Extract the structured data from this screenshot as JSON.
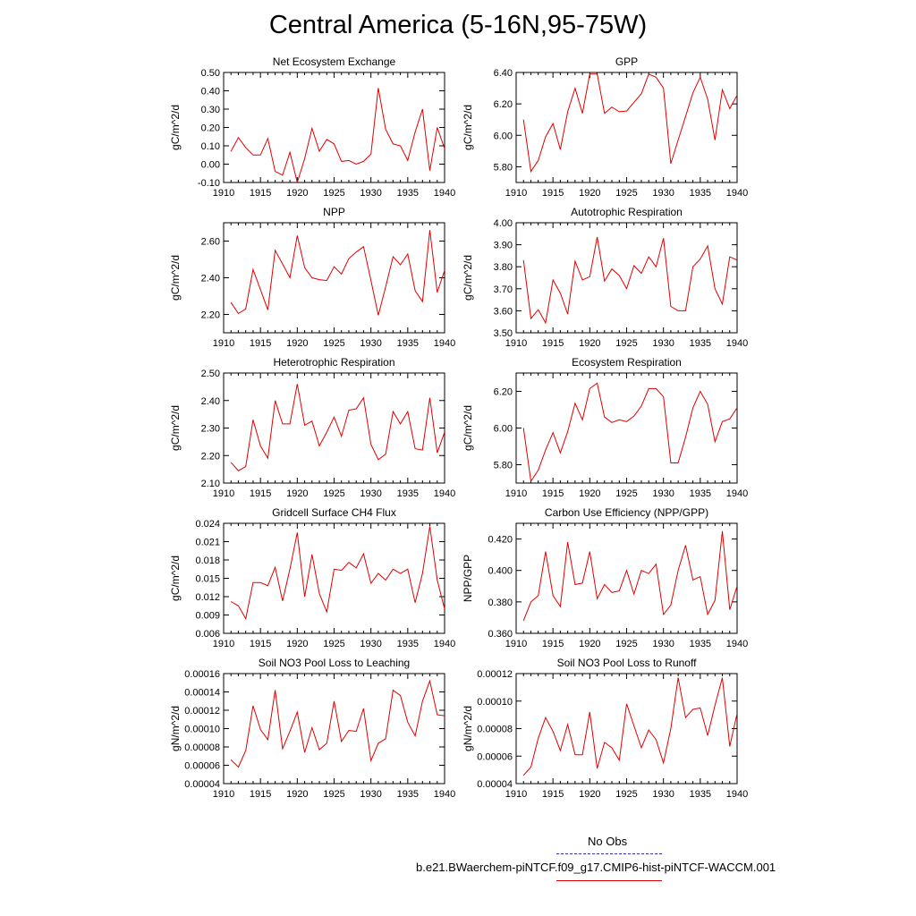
{
  "title": "Central America (5-16N,95-75W)",
  "legend": {
    "obs_label": "No Obs",
    "obs_color": "#3030c0",
    "model_label": "b.e21.BWaerchem-piNTCF.f09_g17.CMIP6-hist-piNTCF-WACCM.001",
    "model_color": "#e00000"
  },
  "chart_data": [
    {
      "type": "line",
      "title": "Net Ecosystem Exchange",
      "ylabel": "gC/m^2/d",
      "xlim": [
        1910,
        1940
      ],
      "ylim": [
        -0.1,
        0.5
      ],
      "x_ticks": [
        "1910",
        "1915",
        "1920",
        "1925",
        "1930",
        "1935",
        "1940"
      ],
      "y_ticks": [
        "-0.10",
        "0.00",
        "0.10",
        "0.20",
        "0.30",
        "0.40",
        "0.50"
      ],
      "x": [
        1911,
        1912,
        1913,
        1914,
        1915,
        1916,
        1917,
        1918,
        1919,
        1920,
        1921,
        1922,
        1923,
        1924,
        1925,
        1926,
        1927,
        1928,
        1929,
        1930,
        1931,
        1932,
        1933,
        1934,
        1935,
        1936,
        1937,
        1938,
        1939,
        1940
      ],
      "values": [
        0.07,
        0.145,
        0.09,
        0.05,
        0.05,
        0.14,
        -0.04,
        -0.06,
        0.065,
        -0.1,
        0.03,
        0.195,
        0.07,
        0.135,
        0.11,
        0.015,
        0.02,
        0.0,
        0.015,
        0.055,
        0.415,
        0.19,
        0.11,
        0.1,
        0.02,
        0.175,
        0.3,
        -0.035,
        0.2,
        0.085
      ]
    },
    {
      "type": "line",
      "title": "GPP",
      "ylabel": "gC/m^2/d",
      "xlim": [
        1910,
        1940
      ],
      "ylim": [
        5.7,
        6.4
      ],
      "x_ticks": [
        "1910",
        "1915",
        "1920",
        "1925",
        "1930",
        "1935",
        "1940"
      ],
      "y_ticks": [
        "5.80",
        "6.00",
        "6.20",
        "6.40"
      ],
      "x": [
        1911,
        1912,
        1913,
        1914,
        1915,
        1916,
        1917,
        1918,
        1919,
        1920,
        1921,
        1922,
        1923,
        1924,
        1925,
        1926,
        1927,
        1928,
        1929,
        1930,
        1931,
        1932,
        1933,
        1934,
        1935,
        1936,
        1937,
        1938,
        1939,
        1940
      ],
      "values": [
        6.1,
        5.77,
        5.84,
        5.99,
        6.075,
        5.91,
        6.15,
        6.3,
        6.14,
        6.39,
        6.39,
        6.14,
        6.18,
        6.15,
        6.155,
        6.21,
        6.265,
        6.39,
        6.37,
        6.3,
        5.82,
        5.97,
        6.12,
        6.27,
        6.37,
        6.23,
        5.97,
        6.29,
        6.17,
        6.255
      ]
    },
    {
      "type": "line",
      "title": "NPP",
      "ylabel": "gC/m^2/d",
      "xlim": [
        1910,
        1940
      ],
      "ylim": [
        2.1,
        2.7
      ],
      "x_ticks": [
        "1910",
        "1915",
        "1920",
        "1925",
        "1930",
        "1935",
        "1940"
      ],
      "y_ticks": [
        "2.20",
        "2.40",
        "2.60"
      ],
      "x": [
        1911,
        1912,
        1913,
        1914,
        1915,
        1916,
        1917,
        1918,
        1919,
        1920,
        1921,
        1922,
        1923,
        1924,
        1925,
        1926,
        1927,
        1928,
        1929,
        1930,
        1931,
        1932,
        1933,
        1934,
        1935,
        1936,
        1937,
        1938,
        1939,
        1940
      ],
      "values": [
        2.265,
        2.205,
        2.23,
        2.445,
        2.335,
        2.225,
        2.55,
        2.475,
        2.4,
        2.63,
        2.455,
        2.4,
        2.39,
        2.385,
        2.46,
        2.42,
        2.505,
        2.54,
        2.57,
        2.385,
        2.195,
        2.35,
        2.515,
        2.47,
        2.53,
        2.33,
        2.27,
        2.66,
        2.32,
        2.44
      ]
    },
    {
      "type": "line",
      "title": "Autotrophic Respiration",
      "ylabel": "gC/m^2/d",
      "xlim": [
        1910,
        1940
      ],
      "ylim": [
        3.5,
        4.0
      ],
      "x_ticks": [
        "1910",
        "1915",
        "1920",
        "1925",
        "1930",
        "1935",
        "1940"
      ],
      "y_ticks": [
        "3.50",
        "3.60",
        "3.70",
        "3.80",
        "3.90",
        "4.00"
      ],
      "x": [
        1911,
        1912,
        1913,
        1914,
        1915,
        1916,
        1917,
        1918,
        1919,
        1920,
        1921,
        1922,
        1923,
        1924,
        1925,
        1926,
        1927,
        1928,
        1929,
        1930,
        1931,
        1932,
        1933,
        1934,
        1935,
        1936,
        1937,
        1938,
        1939,
        1940
      ],
      "values": [
        3.83,
        3.565,
        3.605,
        3.545,
        3.74,
        3.68,
        3.585,
        3.825,
        3.74,
        3.755,
        3.935,
        3.735,
        3.79,
        3.76,
        3.7,
        3.805,
        3.77,
        3.845,
        3.8,
        3.93,
        3.62,
        3.6,
        3.6,
        3.8,
        3.835,
        3.895,
        3.7,
        3.63,
        3.845,
        3.83
      ]
    },
    {
      "type": "line",
      "title": "Heterotrophic Respiration",
      "ylabel": "gC/m^2/d",
      "xlim": [
        1910,
        1940
      ],
      "ylim": [
        2.1,
        2.5
      ],
      "x_ticks": [
        "1910",
        "1915",
        "1920",
        "1925",
        "1930",
        "1935",
        "1940"
      ],
      "y_ticks": [
        "2.10",
        "2.20",
        "2.30",
        "2.40",
        "2.50"
      ],
      "x": [
        1911,
        1912,
        1913,
        1914,
        1915,
        1916,
        1917,
        1918,
        1919,
        1920,
        1921,
        1922,
        1923,
        1924,
        1925,
        1926,
        1927,
        1928,
        1929,
        1930,
        1931,
        1932,
        1933,
        1934,
        1935,
        1936,
        1937,
        1938,
        1939,
        1940
      ],
      "values": [
        2.175,
        2.145,
        2.16,
        2.33,
        2.235,
        2.19,
        2.4,
        2.315,
        2.315,
        2.46,
        2.31,
        2.325,
        2.235,
        2.285,
        2.34,
        2.27,
        2.365,
        2.37,
        2.41,
        2.24,
        2.185,
        2.205,
        2.36,
        2.315,
        2.36,
        2.225,
        2.22,
        2.41,
        2.21,
        2.285
      ]
    },
    {
      "type": "line",
      "title": "Ecosystem Respiration",
      "ylabel": "gC/m^2/d",
      "xlim": [
        1910,
        1940
      ],
      "ylim": [
        5.7,
        6.3
      ],
      "x_ticks": [
        "1910",
        "1915",
        "1920",
        "1925",
        "1930",
        "1935",
        "1940"
      ],
      "y_ticks": [
        "5.80",
        "6.00",
        "6.20"
      ],
      "x": [
        1911,
        1912,
        1913,
        1914,
        1915,
        1916,
        1917,
        1918,
        1919,
        1920,
        1921,
        1922,
        1923,
        1924,
        1925,
        1926,
        1927,
        1928,
        1929,
        1930,
        1931,
        1932,
        1933,
        1934,
        1935,
        1936,
        1937,
        1938,
        1939,
        1940
      ],
      "values": [
        6.0,
        5.71,
        5.77,
        5.88,
        5.975,
        5.865,
        5.98,
        6.135,
        6.045,
        6.215,
        6.245,
        6.06,
        6.03,
        6.045,
        6.035,
        6.065,
        6.12,
        6.215,
        6.215,
        6.17,
        5.81,
        5.81,
        5.95,
        6.11,
        6.2,
        6.13,
        5.925,
        6.035,
        6.05,
        6.11
      ]
    },
    {
      "type": "line",
      "title": "Gridcell Surface CH4 Flux",
      "ylabel": "gC/m^2/d",
      "xlim": [
        1910,
        1940
      ],
      "ylim": [
        0.006,
        0.024
      ],
      "x_ticks": [
        "1910",
        "1915",
        "1920",
        "1925",
        "1930",
        "1935",
        "1940"
      ],
      "y_ticks": [
        "0.006",
        "0.009",
        "0.012",
        "0.015",
        "0.018",
        "0.021",
        "0.024"
      ],
      "x": [
        1911,
        1912,
        1913,
        1914,
        1915,
        1916,
        1917,
        1918,
        1919,
        1920,
        1921,
        1922,
        1923,
        1924,
        1925,
        1926,
        1927,
        1928,
        1929,
        1930,
        1931,
        1932,
        1933,
        1934,
        1935,
        1936,
        1937,
        1938,
        1939,
        1940
      ],
      "values": [
        0.0112,
        0.0105,
        0.0084,
        0.0143,
        0.0143,
        0.0138,
        0.0168,
        0.0113,
        0.0165,
        0.0225,
        0.012,
        0.0189,
        0.0125,
        0.0095,
        0.0165,
        0.0163,
        0.0176,
        0.0167,
        0.019,
        0.0142,
        0.0158,
        0.0147,
        0.0165,
        0.0158,
        0.0165,
        0.011,
        0.0158,
        0.0235,
        0.0147,
        0.01
      ]
    },
    {
      "type": "line",
      "title": "Carbon Use Efficiency (NPP/GPP)",
      "ylabel": "NPP/GPP",
      "xlim": [
        1910,
        1940
      ],
      "ylim": [
        0.36,
        0.43
      ],
      "x_ticks": [
        "1910",
        "1915",
        "1920",
        "1925",
        "1930",
        "1935",
        "1940"
      ],
      "y_ticks": [
        "0.360",
        "0.380",
        "0.400",
        "0.420"
      ],
      "x": [
        1911,
        1912,
        1913,
        1914,
        1915,
        1916,
        1917,
        1918,
        1919,
        1920,
        1921,
        1922,
        1923,
        1924,
        1925,
        1926,
        1927,
        1928,
        1929,
        1930,
        1931,
        1932,
        1933,
        1934,
        1935,
        1936,
        1937,
        1938,
        1939,
        1940
      ],
      "values": [
        0.368,
        0.38,
        0.384,
        0.412,
        0.384,
        0.377,
        0.418,
        0.391,
        0.392,
        0.412,
        0.382,
        0.391,
        0.386,
        0.387,
        0.4,
        0.385,
        0.4,
        0.398,
        0.404,
        0.372,
        0.378,
        0.4,
        0.416,
        0.394,
        0.396,
        0.372,
        0.381,
        0.425,
        0.375,
        0.39
      ]
    },
    {
      "type": "line",
      "title": "Soil NO3 Pool Loss to Leaching",
      "ylabel": "gN/m^2/d",
      "xlim": [
        1910,
        1940
      ],
      "ylim": [
        4e-05,
        0.00016
      ],
      "x_ticks": [
        "1910",
        "1915",
        "1920",
        "1925",
        "1930",
        "1935",
        "1940"
      ],
      "y_ticks": [
        "0.00004",
        "0.00006",
        "0.00008",
        "0.00010",
        "0.00012",
        "0.00014",
        "0.00016"
      ],
      "x": [
        1911,
        1912,
        1913,
        1914,
        1915,
        1916,
        1917,
        1918,
        1919,
        1920,
        1921,
        1922,
        1923,
        1924,
        1925,
        1926,
        1927,
        1928,
        1929,
        1930,
        1931,
        1932,
        1933,
        1934,
        1935,
        1936,
        1937,
        1938,
        1939,
        1940
      ],
      "values": [
        6.6e-05,
        5.8e-05,
        7.6e-05,
        0.000125,
        9.9e-05,
        8.8e-05,
        0.000142,
        7.8e-05,
        9.7e-05,
        0.000118,
        7.4e-05,
        0.000101,
        7.7e-05,
        8.4e-05,
        0.00013,
        8.6e-05,
        9.8e-05,
        9.7e-05,
        0.000122,
        6.5e-05,
        8.4e-05,
        8.9e-05,
        0.000142,
        0.000136,
        0.000107,
        9.2e-05,
        0.00013,
        0.000152,
        0.000115,
        0.000114
      ]
    },
    {
      "type": "line",
      "title": "Soil NO3 Pool Loss to Runoff",
      "ylabel": "gN/m^2/d",
      "xlim": [
        1910,
        1940
      ],
      "ylim": [
        4e-05,
        0.00012
      ],
      "x_ticks": [
        "1910",
        "1915",
        "1920",
        "1925",
        "1930",
        "1935",
        "1940"
      ],
      "y_ticks": [
        "0.00004",
        "0.00006",
        "0.00008",
        "0.00010",
        "0.00012"
      ],
      "x": [
        1911,
        1912,
        1913,
        1914,
        1915,
        1916,
        1917,
        1918,
        1919,
        1920,
        1921,
        1922,
        1923,
        1924,
        1925,
        1926,
        1927,
        1928,
        1929,
        1930,
        1931,
        1932,
        1933,
        1934,
        1935,
        1936,
        1937,
        1938,
        1939,
        1940
      ],
      "values": [
        4.6e-05,
        5.2e-05,
        7.3e-05,
        8.8e-05,
        7.8e-05,
        6.4e-05,
        8.3e-05,
        6.1e-05,
        6.1e-05,
        9.2e-05,
        5.1e-05,
        7e-05,
        6.6e-05,
        5.7e-05,
        9.8e-05,
        8.2e-05,
        6.6e-05,
        7.9e-05,
        7.2e-05,
        5.5e-05,
        8e-05,
        0.000117,
        8.8e-05,
        9.4e-05,
        9.5e-05,
        7.5e-05,
        9.7e-05,
        0.000117,
        6.7e-05,
        9.1e-05
      ]
    }
  ]
}
